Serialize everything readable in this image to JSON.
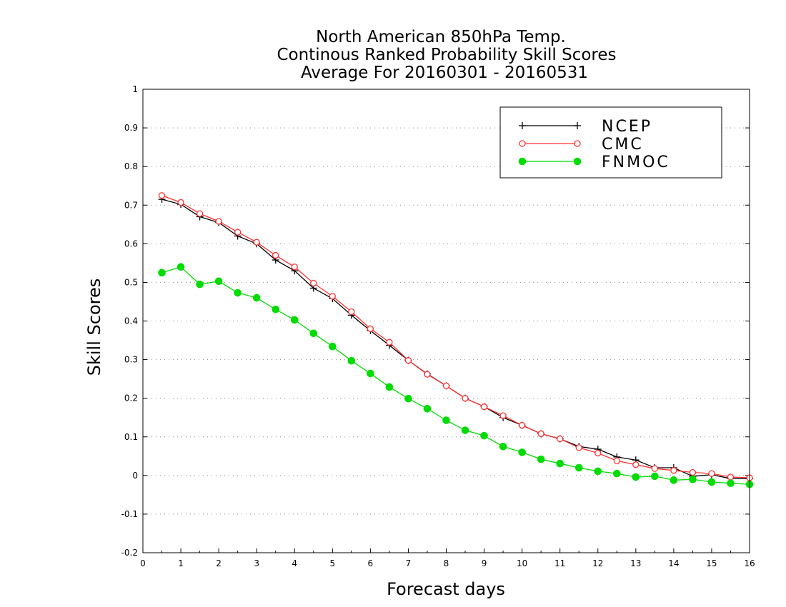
{
  "chart_data": {
    "type": "line",
    "title_lines": [
      "North American 850hPa Temp.",
      "Continous Ranked Probability Skill Scores",
      "Average For 20160301 - 20160531"
    ],
    "xlabel": "Forecast days",
    "ylabel": "Skill Scores",
    "xlim": [
      0,
      16
    ],
    "ylim": [
      -0.2,
      1
    ],
    "x_ticks": [
      0,
      1,
      2,
      3,
      4,
      5,
      6,
      7,
      8,
      9,
      10,
      11,
      12,
      13,
      14,
      15,
      16
    ],
    "x_tick_labels": [
      "0",
      "1",
      "2",
      "3",
      "4",
      "5",
      "6",
      "7",
      "8",
      "9",
      "10",
      "11",
      "12",
      "13",
      "14",
      "15",
      "16"
    ],
    "y_ticks": [
      -0.2,
      -0.1,
      0,
      0.1,
      0.2,
      0.3,
      0.4,
      0.5,
      0.6,
      0.7,
      0.8,
      0.9,
      1
    ],
    "y_tick_labels": [
      "-0.2",
      "-0.1",
      "0",
      "0.1",
      "0.2",
      "0.3",
      "0.4",
      "0.5",
      "0.6",
      "0.7",
      "0.8",
      "0.9",
      "1"
    ],
    "grid": "horizontal dotted",
    "legend_position": "top-right",
    "x": [
      0.5,
      1,
      1.5,
      2,
      2.5,
      3,
      3.5,
      4,
      4.5,
      5,
      5.5,
      6,
      6.5,
      7,
      7.5,
      8,
      8.5,
      9,
      9.5,
      10,
      10.5,
      11,
      11.5,
      12,
      12.5,
      13,
      13.5,
      14,
      14.5,
      15,
      15.5,
      16
    ],
    "series": [
      {
        "name": "NCEP",
        "color": "#000000",
        "marker": "plus",
        "values": [
          0.715,
          0.702,
          0.67,
          0.655,
          0.62,
          0.6,
          0.558,
          0.53,
          0.485,
          0.458,
          0.415,
          0.375,
          0.337,
          0.298,
          0.263,
          0.232,
          0.2,
          0.178,
          0.15,
          0.13,
          0.108,
          0.095,
          0.075,
          0.068,
          0.048,
          0.04,
          0.02,
          0.02,
          -0.002,
          0.002,
          -0.008,
          -0.008
        ]
      },
      {
        "name": "CMC",
        "color": "#ff3030",
        "marker": "open-circle",
        "values": [
          0.725,
          0.707,
          0.678,
          0.658,
          0.63,
          0.604,
          0.57,
          0.54,
          0.498,
          0.464,
          0.424,
          0.38,
          0.345,
          0.298,
          0.262,
          0.232,
          0.2,
          0.178,
          0.155,
          0.13,
          0.108,
          0.095,
          0.072,
          0.058,
          0.038,
          0.028,
          0.018,
          0.013,
          0.008,
          0.005,
          -0.004,
          -0.006
        ]
      },
      {
        "name": "FNMOC",
        "color": "#00dc00",
        "marker": "filled-circle",
        "values": [
          0.525,
          0.54,
          0.495,
          0.503,
          0.473,
          0.46,
          0.43,
          0.403,
          0.368,
          0.334,
          0.297,
          0.264,
          0.229,
          0.199,
          0.173,
          0.143,
          0.117,
          0.103,
          0.075,
          0.06,
          0.042,
          0.031,
          0.02,
          0.011,
          0.005,
          -0.004,
          -0.002,
          -0.012,
          -0.01,
          -0.017,
          -0.02,
          -0.023
        ]
      }
    ]
  }
}
